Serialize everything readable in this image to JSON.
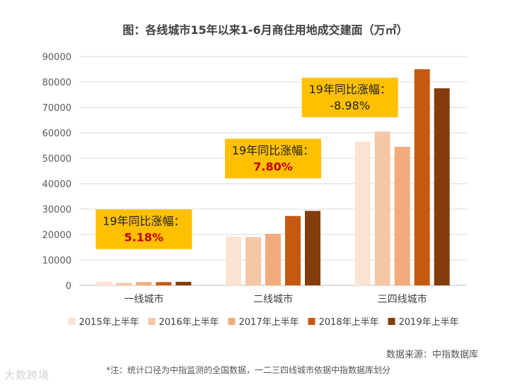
{
  "chart_data": {
    "type": "bar",
    "title": "图：各线城市15年以来1-6月商住用地成交建面（万㎡）",
    "categories": [
      "一线城市",
      "二线城市",
      "三四线城市"
    ],
    "series": [
      {
        "name": "2015年上半年",
        "color": "#fbe3d2",
        "values": [
          1500,
          19200,
          56500
        ]
      },
      {
        "name": "2016年上半年",
        "color": "#f6c7a6",
        "values": [
          1000,
          19000,
          60500
        ]
      },
      {
        "name": "2017年上半年",
        "color": "#f1ab7c",
        "values": [
          1300,
          20300,
          54500
        ]
      },
      {
        "name": "2018年上半年",
        "color": "#c65911",
        "values": [
          1300,
          27300,
          85000
        ]
      },
      {
        "name": "2019年上半年",
        "color": "#843c0c",
        "values": [
          1400,
          29300,
          77500
        ]
      }
    ],
    "ylim": [
      0,
      90000
    ],
    "yticks": [
      0,
      10000,
      20000,
      30000,
      40000,
      50000,
      60000,
      70000,
      80000,
      90000
    ],
    "grid": true,
    "legend_position": "bottom",
    "annotations": [
      {
        "category": "一线城市",
        "label": "19年同比涨幅：",
        "value": "5.18%",
        "value_color": "#c00000"
      },
      {
        "category": "二线城市",
        "label": "19年同比涨幅：",
        "value": "7.80%",
        "value_color": "#c00000"
      },
      {
        "category": "三四线城市",
        "label": "19年同比涨幅：",
        "value": "-8.98%",
        "value_color": "#222222"
      }
    ],
    "annotation_bg": "#ffc000"
  },
  "source_note": "数据来源：中指数据库",
  "footnote": "*注：统计口径为中指监测的全国数据，一二三四线城市依据中指数据库划分",
  "watermark": "大数跨境"
}
